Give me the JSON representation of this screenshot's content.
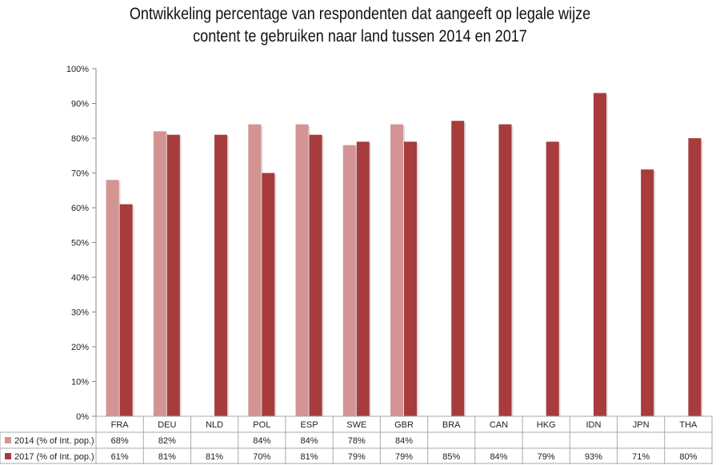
{
  "chart_data": {
    "type": "bar",
    "title_lines": [
      "Ontwikkeling percentage van respondenten dat aangeeft op legale wijze",
      "content te gebruiken naar land tussen 2014 en 2017"
    ],
    "categories": [
      "FRA",
      "DEU",
      "NLD",
      "POL",
      "ESP",
      "SWE",
      "GBR",
      "BRA",
      "CAN",
      "HKG",
      "IDN",
      "JPN",
      "THA"
    ],
    "series": [
      {
        "name": "2014 (% of Int. pop.)",
        "color": "#d49494",
        "values": [
          68,
          82,
          null,
          84,
          84,
          78,
          84,
          null,
          null,
          null,
          null,
          null,
          null
        ]
      },
      {
        "name": "2017 (% of Int. pop.)",
        "color": "#a83b3b",
        "values": [
          61,
          81,
          81,
          70,
          81,
          79,
          79,
          85,
          84,
          79,
          93,
          71,
          80
        ]
      }
    ],
    "ylim": [
      0,
      100
    ],
    "yticks": [
      "0%",
      "10%",
      "20%",
      "30%",
      "40%",
      "50%",
      "60%",
      "70%",
      "80%",
      "90%",
      "100%"
    ],
    "grid": false,
    "legend": "data table below chart"
  }
}
